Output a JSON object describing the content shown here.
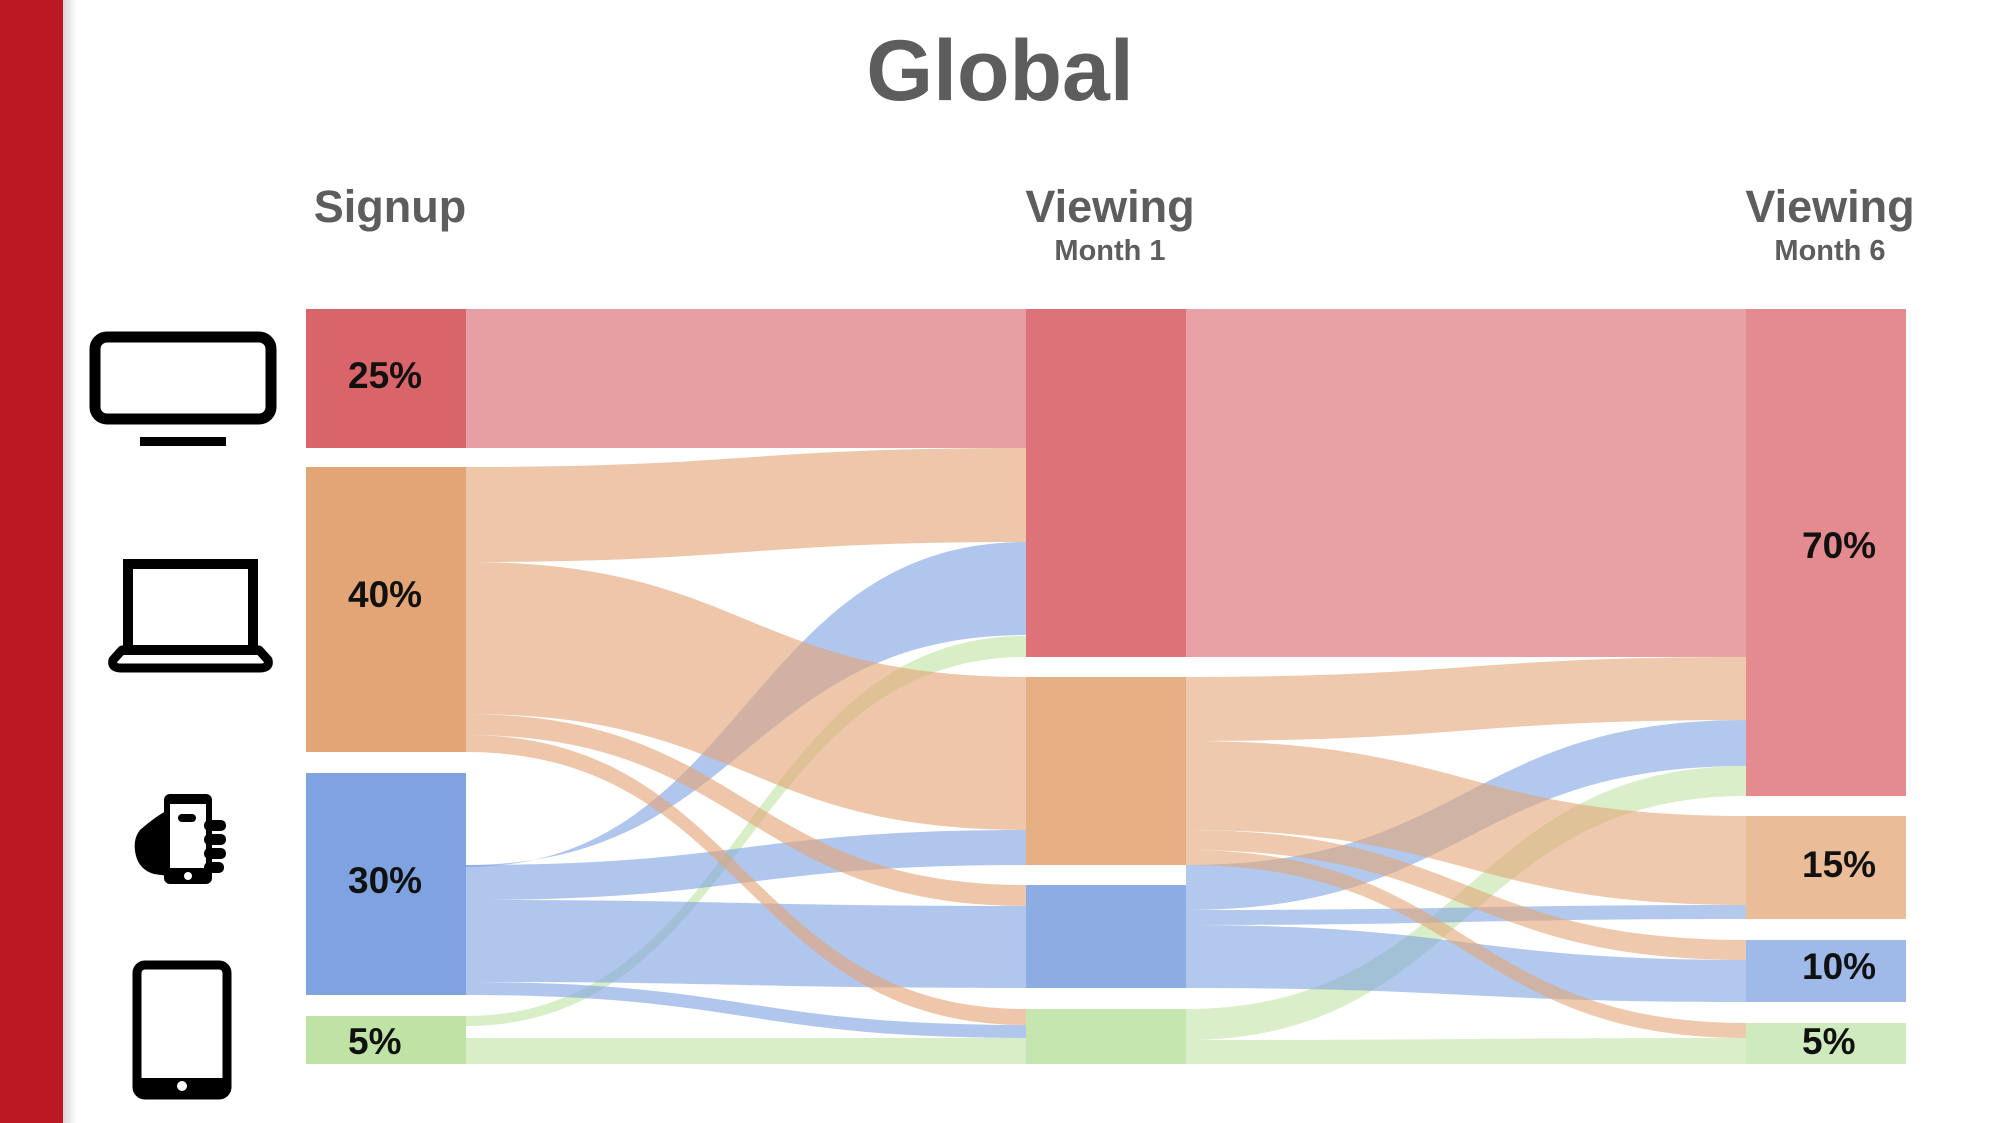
{
  "title": "Global",
  "columns": [
    {
      "label": "Signup",
      "sublabel": ""
    },
    {
      "label": "Viewing",
      "sublabel": "Month 1"
    },
    {
      "label": "Viewing",
      "sublabel": "Month 6"
    }
  ],
  "devices": [
    {
      "name": "TV",
      "icon": "tv-icon",
      "color": "#d9646a"
    },
    {
      "name": "Laptop",
      "icon": "laptop-icon",
      "color": "#e3a576"
    },
    {
      "name": "Phone",
      "icon": "phone-icon",
      "color": "#7fa3e0"
    },
    {
      "name": "Tablet",
      "icon": "tablet-icon",
      "color": "#bfe3a5"
    }
  ],
  "stages": {
    "signup": [
      25,
      40,
      30,
      5
    ],
    "viewing_month_1": null,
    "viewing_month_6": [
      70,
      15,
      10,
      5
    ]
  },
  "labels": {
    "signup": [
      "25%",
      "40%",
      "30%",
      "5%"
    ],
    "viewing_month_6": [
      "70%",
      "15%",
      "10%",
      "5%"
    ]
  },
  "colors": {
    "sidebar": "#bc1823",
    "title_text": "#5d5d5d"
  }
}
